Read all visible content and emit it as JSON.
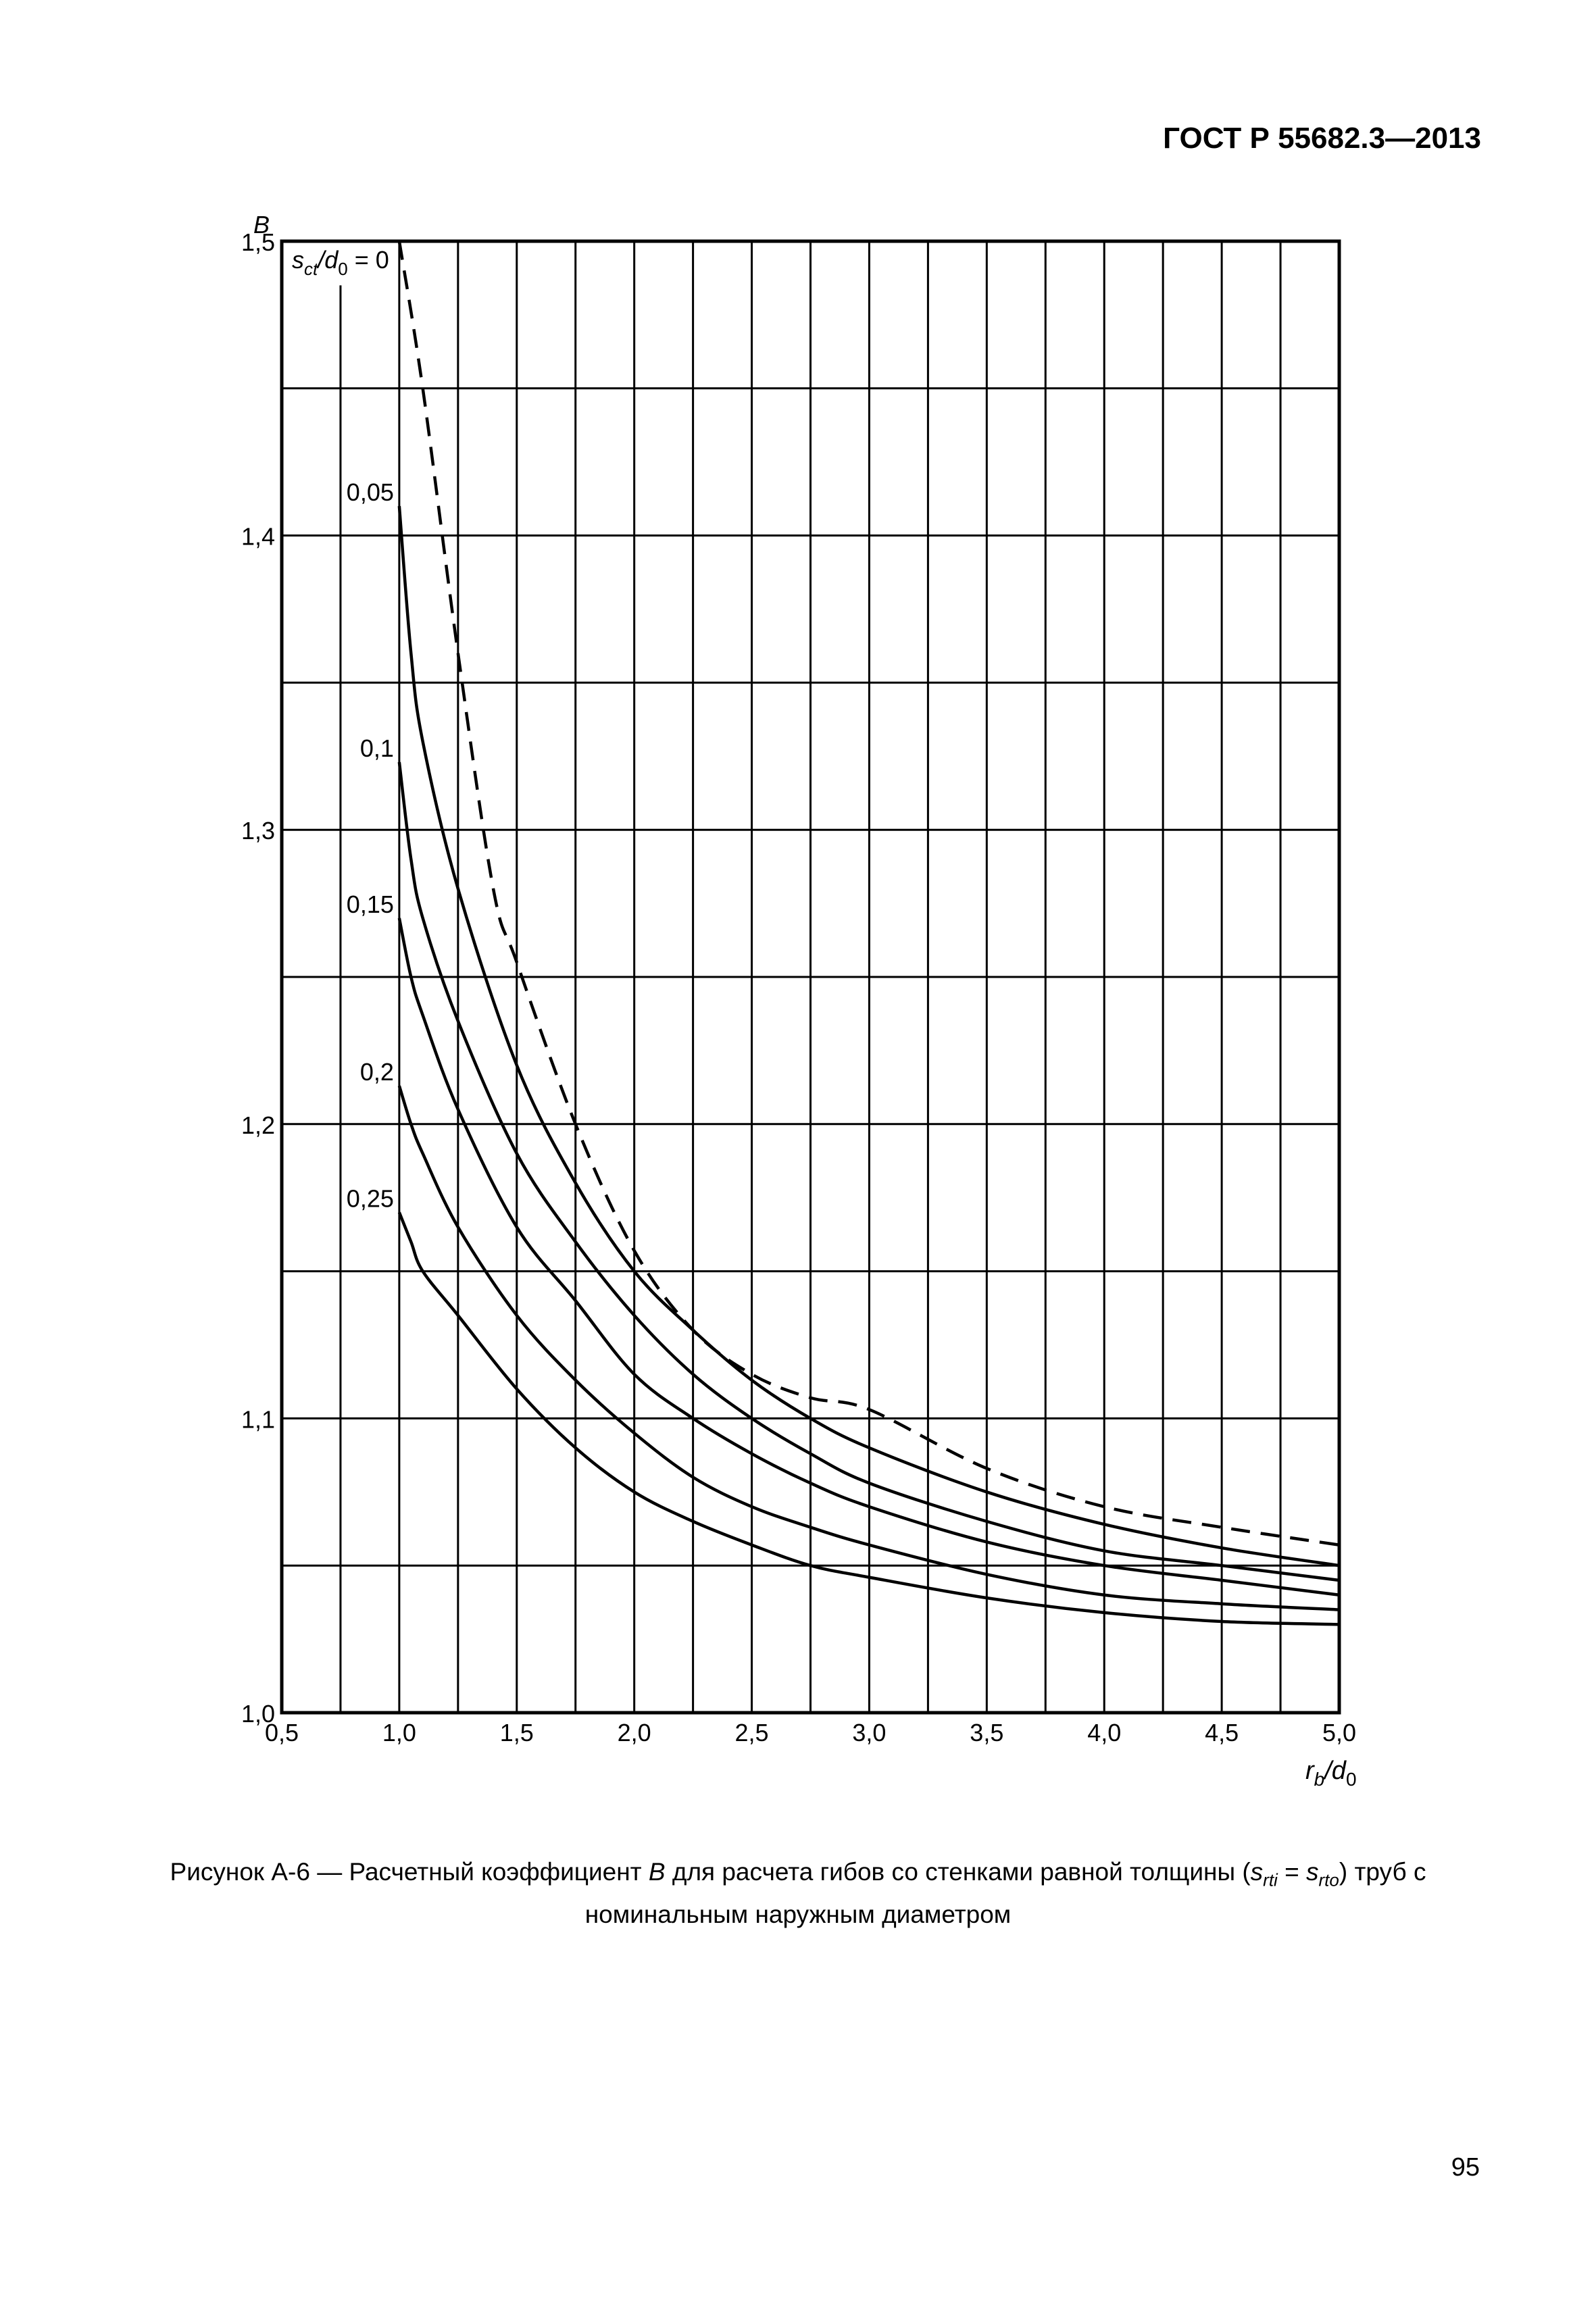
{
  "header": {
    "standard": "ГОСТ Р 55682.3—2013"
  },
  "caption": {
    "prefix": "Рисунок А-6 — Расчетный коэффициент ",
    "symbol": "B",
    "middle": " для расчета гибов со стенками равной толщины (",
    "s1": "s",
    "s1_sub": "rti",
    "eq": " = ",
    "s2": "s",
    "s2_sub": "rto",
    "suffix": ") труб с",
    "line2": "номинальным наружным диаметром"
  },
  "page_number": "95",
  "chart_data": {
    "type": "line",
    "ylabel": "B",
    "xlabel_main": "r",
    "xlabel_sub": "b",
    "xlabel_sep": "/d",
    "xlabel_sub2": "0",
    "xlim": [
      0.5,
      5.0
    ],
    "ylim": [
      1.0,
      1.5
    ],
    "x_ticks": [
      "0,5",
      "1,0",
      "1,5",
      "2,0",
      "2,5",
      "3,0",
      "3,5",
      "4,0",
      "4,5",
      "5,0"
    ],
    "x_tick_values": [
      0.5,
      1.0,
      1.5,
      2.0,
      2.5,
      3.0,
      3.5,
      4.0,
      4.5,
      5.0
    ],
    "y_ticks": [
      "1,0",
      "1,1",
      "1,2",
      "1,3",
      "1,4",
      "1,5"
    ],
    "y_tick_values": [
      1.0,
      1.1,
      1.2,
      1.3,
      1.4,
      1.5
    ],
    "grid": true,
    "x_grid_step": 0.25,
    "y_grid_step": 0.05,
    "series": [
      {
        "name": "0",
        "style": "dashed",
        "x": [
          1.0,
          1.1,
          1.25,
          1.4,
          1.5,
          1.75,
          2.0,
          2.25,
          2.5,
          2.75,
          3.0,
          3.5,
          4.0,
          4.5,
          5.0
        ],
        "y": [
          1.5,
          1.45,
          1.36,
          1.28,
          1.255,
          1.2,
          1.157,
          1.13,
          1.115,
          1.107,
          1.103,
          1.083,
          1.07,
          1.063,
          1.057
        ]
      },
      {
        "name": "0,05",
        "style": "solid",
        "x": [
          1.0,
          1.05,
          1.1,
          1.25,
          1.5,
          1.75,
          2.0,
          2.25,
          2.5,
          2.75,
          3.0,
          3.5,
          4.0,
          4.5,
          5.0
        ],
        "y": [
          1.41,
          1.36,
          1.33,
          1.28,
          1.22,
          1.18,
          1.15,
          1.13,
          1.113,
          1.1,
          1.09,
          1.075,
          1.064,
          1.056,
          1.05
        ]
      },
      {
        "name": "0,1",
        "style": "solid",
        "x": [
          1.0,
          1.05,
          1.1,
          1.25,
          1.5,
          1.75,
          2.0,
          2.25,
          2.5,
          2.75,
          3.0,
          3.5,
          4.0,
          4.5,
          5.0
        ],
        "y": [
          1.323,
          1.29,
          1.27,
          1.235,
          1.19,
          1.16,
          1.135,
          1.115,
          1.1,
          1.088,
          1.078,
          1.065,
          1.055,
          1.05,
          1.045
        ]
      },
      {
        "name": "0,15",
        "style": "solid",
        "x": [
          1.0,
          1.05,
          1.1,
          1.25,
          1.5,
          1.75,
          2.0,
          2.25,
          2.5,
          2.75,
          3.0,
          3.5,
          4.0,
          4.5,
          5.0
        ],
        "y": [
          1.27,
          1.25,
          1.237,
          1.205,
          1.165,
          1.14,
          1.115,
          1.1,
          1.088,
          1.078,
          1.07,
          1.058,
          1.05,
          1.045,
          1.04
        ]
      },
      {
        "name": "0,2",
        "style": "solid",
        "x": [
          1.0,
          1.05,
          1.1,
          1.25,
          1.5,
          1.75,
          2.0,
          2.25,
          2.5,
          2.75,
          3.0,
          3.5,
          4.0,
          4.5,
          5.0
        ],
        "y": [
          1.213,
          1.2,
          1.19,
          1.165,
          1.135,
          1.113,
          1.095,
          1.08,
          1.07,
          1.063,
          1.057,
          1.047,
          1.04,
          1.037,
          1.035
        ]
      },
      {
        "name": "0,25",
        "style": "solid",
        "x": [
          1.0,
          1.05,
          1.1,
          1.25,
          1.5,
          1.75,
          2.0,
          2.25,
          2.5,
          2.75,
          3.0,
          3.5,
          4.0,
          4.5,
          5.0
        ],
        "y": [
          1.17,
          1.16,
          1.15,
          1.135,
          1.11,
          1.09,
          1.075,
          1.065,
          1.057,
          1.05,
          1.046,
          1.039,
          1.034,
          1.031,
          1.03
        ]
      }
    ],
    "series_label_prefix": {
      "s": "s",
      "sub": "ct",
      "sep": "/d",
      "sub2": "0",
      "eq": " = "
    }
  }
}
